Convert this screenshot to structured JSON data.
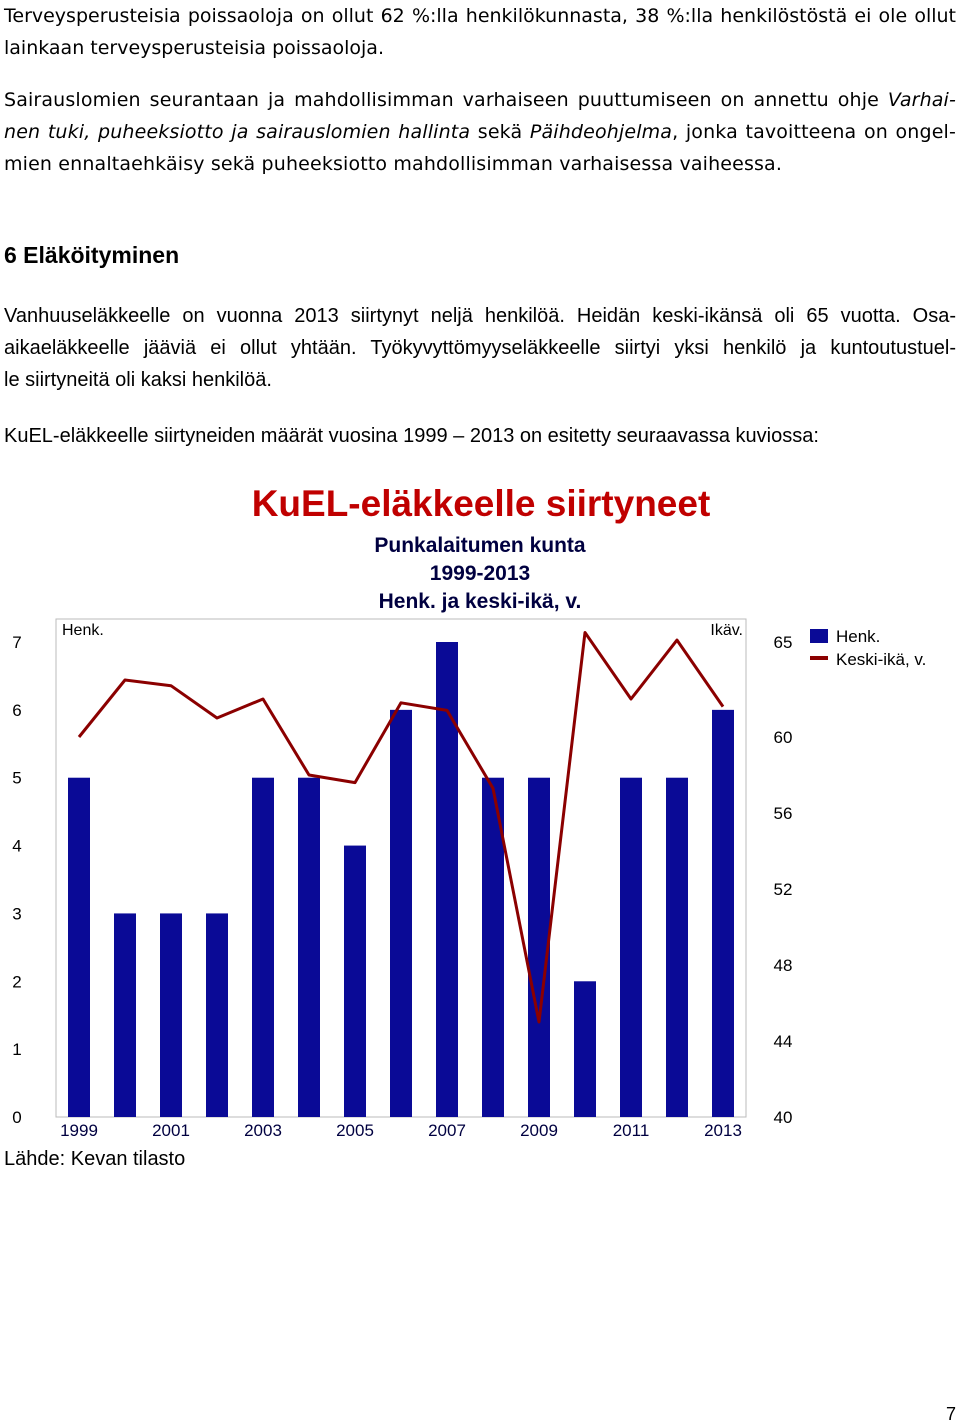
{
  "intro": {
    "line1": "Terveysperusteisia poissaoloja on ollut 62 %:lla henkilökunnasta, 38 %:lla henkilöstöstä ei ole ollut",
    "line2": "lainkaan terveysperusteisia poissaoloja."
  },
  "sick_leave": {
    "line1_text": "Sairauslomien seurantaan ja mahdollisimman varhaiseen puuttumiseen on annettu ohje ",
    "line1_italic": "Varhai-",
    "line2_italic_a": "nen tuki, puheeksiotto ja sairauslomien hallinta",
    "line2_mid": " sekä ",
    "line2_italic_b": "Päihdeohjelma",
    "line2_end": ", jonka tavoitteena on ongel-",
    "line3": "mien ennaltaehkäisy sekä puheeksiotto mahdollisimman varhaisessa vaiheessa."
  },
  "section_heading": "6 Eläköityminen",
  "retirement": {
    "line1": "Vanhuuseläkkeelle on vuonna 2013 siirtynyt neljä henkilöä. Heidän keski-ikänsä oli 65 vuotta. Osa-",
    "line2": "aikaeläkkeelle jääviä ei ollut yhtään. Työkyvyttömyyseläkkeelle siirtyi yksi henkilö ja kuntoutustuel-",
    "line3": "le siirtyneitä oli kaksi henkilöä."
  },
  "figure_intro": "KuEL-eläkkeelle siirtyneiden määrät vuosina 1999 – 2013 on esitetty seuraavassa kuviossa:",
  "source": "Lähde: Kevan tilasto",
  "page_number": "7",
  "chart_data": {
    "type": "bar",
    "title": "KuEL-eläkkeelle siirtyneet",
    "subtitle_lines": [
      "Punkalaitumen kunta",
      "1999-2013",
      "Henk. ja keski-ikä, v."
    ],
    "left_axis_label": "Henk.",
    "right_axis_label": "Ikäv.",
    "categories": [
      "1999",
      "2000",
      "2001",
      "2002",
      "2003",
      "2004",
      "2005",
      "2006",
      "2007",
      "2008",
      "2009",
      "2010",
      "2011",
      "2012",
      "2013"
    ],
    "category_tick_labels": [
      "1999",
      "2001",
      "2003",
      "2005",
      "2007",
      "2009",
      "2011",
      "2013"
    ],
    "series": [
      {
        "name": "Henk.",
        "kind": "bar",
        "axis": "left",
        "color": "#0a0a96",
        "values": [
          5,
          3,
          3,
          3,
          5,
          5,
          4,
          6,
          7,
          5,
          5,
          2,
          5,
          5,
          6
        ]
      },
      {
        "name": "Keski-ikä, v.",
        "kind": "line",
        "axis": "right",
        "color": "#8b0000",
        "values": [
          60.0,
          63.0,
          62.7,
          61.0,
          62.0,
          58.0,
          57.6,
          61.8,
          61.4,
          57.3,
          45.0,
          65.5,
          62.0,
          65.1,
          61.6
        ]
      }
    ],
    "left_ylim": [
      0,
      7
    ],
    "left_ticks": [
      "0",
      "1",
      "2",
      "3",
      "4",
      "5",
      "6",
      "7"
    ],
    "right_ylim": [
      40,
      65
    ],
    "right_ticks": [
      "40",
      "44",
      "48",
      "52",
      "56",
      "60",
      "65"
    ],
    "grid": false,
    "legend_position": "right"
  }
}
